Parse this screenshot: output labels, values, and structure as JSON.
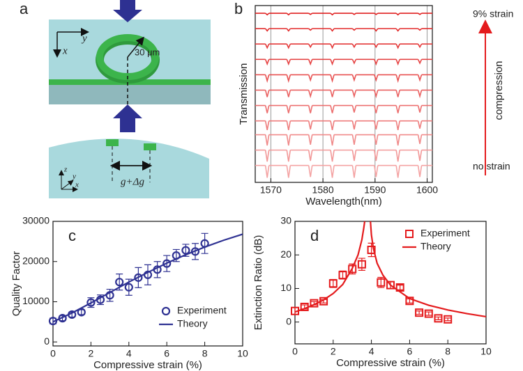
{
  "diagram": {
    "label": "a",
    "top_axes": [
      "x",
      "y"
    ],
    "radius": "30 μm",
    "bottom_axes": [
      "z",
      "y",
      "x"
    ],
    "gap": "g+Δg"
  },
  "chart_data": [
    {
      "type": "spectra",
      "label": "b",
      "xlabel": "Wavelength(nm)",
      "ylabel": "Transmission",
      "xlim": [
        1567,
        1601
      ],
      "xticks": [
        1570,
        1580,
        1590,
        1600
      ],
      "ylim": [
        0,
        11.5
      ],
      "grid": true,
      "annotations": {
        "top": "9% strain",
        "bottom": "no strain",
        "arrow": "compression"
      },
      "dips": [
        1569.3,
        1573.4,
        1577.6,
        1581.8,
        1586.0,
        1590.2,
        1594.4,
        1598.6
      ],
      "series": [
        {
          "color": "#f4a3a3",
          "level": 1.1,
          "values": [
            0.3,
            0.3,
            0.35,
            0.3,
            0.3,
            0.35,
            0.3,
            0.35
          ]
        },
        {
          "color": "#f29797",
          "level": 2.1,
          "values": [
            1.35,
            1.35,
            1.4,
            1.35,
            1.4,
            1.4,
            1.35,
            1.4
          ]
        },
        {
          "color": "#f08a8a",
          "level": 3.1,
          "values": [
            2.4,
            2.4,
            2.45,
            2.4,
            2.45,
            2.45,
            2.4,
            2.5
          ]
        },
        {
          "color": "#ee7c7c",
          "level": 4.0,
          "values": [
            3.4,
            3.4,
            3.45,
            3.4,
            3.45,
            3.45,
            3.4,
            3.5
          ]
        },
        {
          "color": "#ec6e6e",
          "level": 5.0,
          "values": [
            4.5,
            4.5,
            4.5,
            4.5,
            4.55,
            4.5,
            4.5,
            4.55
          ]
        },
        {
          "color": "#ea6060",
          "level": 6.0,
          "values": [
            5.55,
            5.55,
            5.6,
            5.55,
            5.6,
            5.6,
            5.55,
            5.6
          ]
        },
        {
          "color": "#e85252",
          "level": 7.0,
          "values": [
            6.6,
            6.6,
            6.65,
            6.6,
            6.65,
            6.65,
            6.6,
            6.65
          ]
        },
        {
          "color": "#e64444",
          "level": 8.0,
          "values": [
            7.7,
            7.7,
            7.7,
            7.7,
            7.75,
            7.7,
            7.7,
            7.75
          ]
        },
        {
          "color": "#e43838",
          "level": 9.0,
          "values": [
            8.75,
            8.75,
            8.8,
            8.75,
            8.8,
            8.8,
            8.75,
            8.8
          ]
        },
        {
          "color": "#e22c2c",
          "level": 10.0,
          "values": [
            9.85,
            9.85,
            9.9,
            9.85,
            9.9,
            9.85,
            9.85,
            9.9
          ]
        },
        {
          "color": "#e02020",
          "level": 11.0,
          "values": [
            10.9,
            10.9,
            10.92,
            10.9,
            10.92,
            10.92,
            10.9,
            10.92
          ]
        }
      ]
    },
    {
      "type": "scatter",
      "label": "c",
      "xlabel": "Compressive strain (%)",
      "ylabel": "Quality Factor",
      "xlim": [
        0,
        10
      ],
      "xticks": [
        0,
        2,
        4,
        6,
        8,
        10
      ],
      "ylim": [
        -1000,
        30000
      ],
      "yticks": [
        0,
        10000,
        20000,
        30000
      ],
      "legend": "lower right",
      "series": [
        {
          "name": "Experiment",
          "color": "#2e3192",
          "marker": "circle",
          "x": [
            0,
            0.5,
            1,
            1.5,
            2,
            2.5,
            3,
            3.5,
            4,
            4.5,
            5,
            5.5,
            6,
            6.5,
            7,
            7.5,
            8
          ],
          "values": [
            5200,
            5900,
            6800,
            7400,
            9800,
            10500,
            11600,
            14900,
            13600,
            16000,
            16700,
            18000,
            19500,
            21500,
            22800,
            22500,
            24500
          ],
          "errors": [
            700,
            600,
            600,
            600,
            1200,
            1200,
            1500,
            2000,
            2000,
            2500,
            2500,
            2000,
            2000,
            1500,
            1500,
            2000,
            2500
          ]
        },
        {
          "name": "Theory",
          "color": "#2e3192",
          "x": [
            0,
            1,
            2,
            3,
            4,
            5,
            6,
            7,
            8,
            9,
            10
          ],
          "values": [
            5000,
            7200,
            9700,
            12300,
            14900,
            17300,
            19600,
            21700,
            23600,
            25300,
            26800
          ]
        }
      ]
    },
    {
      "type": "scatter",
      "label": "d",
      "xlabel": "Compressive strain (%)",
      "ylabel": "Extinction Ratio (dB)",
      "xlim": [
        0,
        10
      ],
      "xticks": [
        0,
        2,
        4,
        6,
        8,
        10
      ],
      "ylim": [
        -6.5,
        30
      ],
      "yticks": [
        0,
        10,
        20,
        30
      ],
      "legend": "upper right",
      "series": [
        {
          "name": "Experiment",
          "color": "#e41a1c",
          "marker": "square",
          "x": [
            0,
            0.5,
            1,
            1.5,
            2,
            2.5,
            3,
            3.5,
            4,
            4.5,
            5,
            5.5,
            6,
            6.5,
            7,
            7.5,
            8
          ],
          "values": [
            3.3,
            4.5,
            5.6,
            6.2,
            11.5,
            14,
            15.8,
            17.2,
            21.5,
            11.8,
            11,
            10.3,
            6.3,
            2.8,
            2.5,
            1.1,
            0.8
          ],
          "errors": [
            1,
            0.6,
            0.5,
            0.5,
            1.2,
            1.2,
            1.5,
            1.8,
            2,
            1.5,
            1,
            0.7,
            0.6,
            0.5,
            0.5,
            0.4,
            0.4
          ]
        },
        {
          "name": "Theory",
          "color": "#e41a1c",
          "x": [
            0,
            0.5,
            1,
            1.5,
            2,
            2.5,
            3,
            3.3,
            3.5,
            3.6,
            3.65,
            null,
            3.95,
            4,
            4.1,
            4.3,
            4.6,
            5,
            6,
            7,
            8,
            9,
            10
          ],
          "values": [
            3,
            4,
            5.2,
            6.6,
            8.5,
            11.2,
            16,
            20,
            24.5,
            28,
            30,
            null,
            30,
            26,
            22,
            17.5,
            14,
            11,
            7,
            5,
            3.6,
            2.5,
            1.6
          ]
        }
      ]
    }
  ]
}
